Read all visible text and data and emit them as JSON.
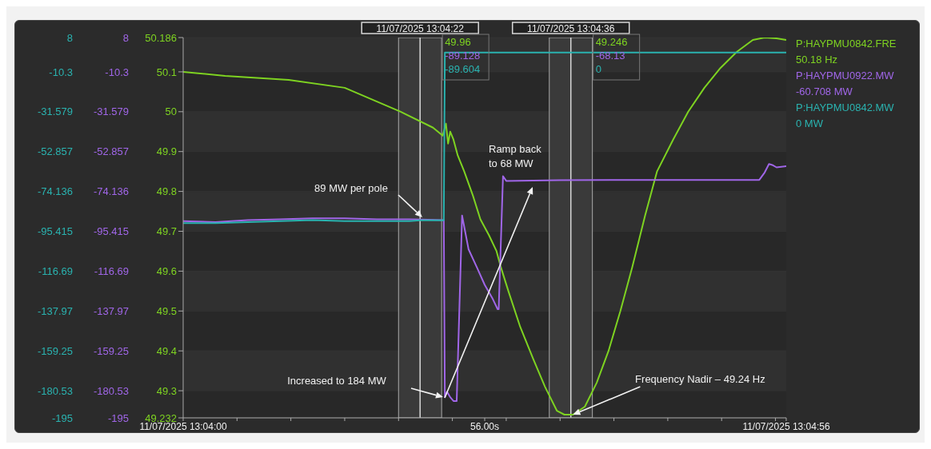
{
  "chart_data": {
    "type": "line",
    "xlim": [
      "2025-07-11T13:04:00",
      "2025-07-11T13:04:56"
    ],
    "xticks": [
      {
        "value": "2025-07-11T13:04:00",
        "label": "11/07/2025 13:04:00"
      },
      {
        "value": "2025-07-11T13:04:05",
        "label": null
      },
      {
        "value": "2025-07-11T13:04:10",
        "label": null
      },
      {
        "value": "2025-07-11T13:04:15",
        "label": null
      },
      {
        "value": "2025-07-11T13:04:20",
        "label": null
      },
      {
        "value": "2025-07-11T13:04:25",
        "label": null
      },
      {
        "value": "2025-07-11T13:04:28",
        "label": "56.00s"
      },
      {
        "value": "2025-07-11T13:04:30",
        "label": null
      },
      {
        "value": "2025-07-11T13:04:35",
        "label": null
      },
      {
        "value": "2025-07-11T13:04:40",
        "label": null
      },
      {
        "value": "2025-07-11T13:04:45",
        "label": null
      },
      {
        "value": "2025-07-11T13:04:50",
        "label": null
      },
      {
        "value": "2025-07-11T13:04:55",
        "label": null
      },
      {
        "value": "2025-07-11T13:04:56",
        "label": "11/07/2025 13:04:56"
      }
    ],
    "ylim": [
      49.232,
      50.186
    ],
    "yticks": [
      49.232,
      49.3,
      49.4,
      49.5,
      49.6,
      49.7,
      49.8,
      49.9,
      50,
      50.1,
      50.186
    ],
    "y2lim": [
      -195,
      8
    ],
    "y2ticks": [
      -195,
      -180.53,
      -159.25,
      -137.97,
      -116.69,
      -95.415,
      -74.136,
      -52.857,
      -31.579,
      -10.3,
      8
    ],
    "y3lim": [
      -195,
      8
    ],
    "y3ticks": [
      -195,
      -180.53,
      -159.25,
      -137.97,
      -116.69,
      -95.415,
      -74.136,
      -52.857,
      -31.579,
      -10.3,
      8
    ],
    "grid": "y",
    "legend": "right",
    "series": [
      {
        "name": "P:HAYPMU0842.FRE",
        "color": "#7ed321",
        "x": [
          "2025-07-11T13:04:00",
          "2025-07-11T13:04:03.9",
          "2025-07-11T13:04:09.8",
          "2025-07-11T13:04:15",
          "2025-07-11T13:04:20.2",
          "2025-07-11T13:04:23.2",
          "2025-07-11T13:04:24.1",
          "2025-07-11T13:04:24.4",
          "2025-07-11T13:04:24.6",
          "2025-07-11T13:04:24.8",
          "2025-07-11T13:04:25.1",
          "2025-07-11T13:04:25.5",
          "2025-07-11T13:04:26.1",
          "2025-07-11T13:04:26.9",
          "2025-07-11T13:04:27.6",
          "2025-07-11T13:04:28.4",
          "2025-07-11T13:04:29.1",
          "2025-07-11T13:04:29.5",
          "2025-07-11T13:04:30.2",
          "2025-07-11T13:04:31.3",
          "2025-07-11T13:04:32.5",
          "2025-07-11T13:04:33.6",
          "2025-07-11T13:04:34.7",
          "2025-07-11T13:04:35.4",
          "2025-07-11T13:04:36.2",
          "2025-07-11T13:04:37.3",
          "2025-07-11T13:04:38.4",
          "2025-07-11T13:04:39.5",
          "2025-07-11T13:04:40.6",
          "2025-07-11T13:04:41.7",
          "2025-07-11T13:04:42.9",
          "2025-07-11T13:04:44",
          "2025-07-11T13:04:45.5",
          "2025-07-11T13:04:46.9",
          "2025-07-11T13:04:48.4",
          "2025-07-11T13:04:49.9",
          "2025-07-11T13:04:51.4",
          "2025-07-11T13:04:52.9",
          "2025-07-11T13:04:54",
          "2025-07-11T13:04:55.1",
          "2025-07-11T13:04:56"
        ],
        "values": [
          50.1,
          50.09,
          50.08,
          50.06,
          50,
          49.96,
          49.94,
          49.97,
          49.92,
          49.95,
          49.93,
          49.89,
          49.85,
          49.79,
          49.73,
          49.69,
          49.65,
          49.61,
          49.55,
          49.46,
          49.38,
          49.31,
          49.25,
          49.24,
          49.24,
          49.26,
          49.32,
          49.4,
          49.5,
          49.61,
          49.74,
          49.85,
          49.93,
          50,
          50.06,
          50.11,
          50.15,
          50.18,
          50.186,
          50.184,
          50.18
        ]
      },
      {
        "name": "P:HAYPMU0922.MW",
        "color": "#a066e8",
        "axis": "y2",
        "x": [
          "2025-07-11T13:04:00",
          "2025-07-11T13:04:03",
          "2025-07-11T13:04:06",
          "2025-07-11T13:04:09",
          "2025-07-11T13:04:12",
          "2025-07-11T13:04:15",
          "2025-07-11T13:04:18",
          "2025-07-11T13:04:21",
          "2025-07-11T13:04:22",
          "2025-07-11T13:04:24.2",
          "2025-07-11T13:04:24.3",
          "2025-07-11T13:04:24.5",
          "2025-07-11T13:04:24.8",
          "2025-07-11T13:04:25.1",
          "2025-07-11T13:04:25.4",
          "2025-07-11T13:04:25.9",
          "2025-07-11T13:04:26.5",
          "2025-07-11T13:04:27.3",
          "2025-07-11T13:04:28",
          "2025-07-11T13:04:28.7",
          "2025-07-11T13:04:29.2",
          "2025-07-11T13:04:29.3",
          "2025-07-11T13:04:29.7",
          "2025-07-11T13:04:30",
          "2025-07-11T13:04:35",
          "2025-07-11T13:04:40",
          "2025-07-11T13:04:45",
          "2025-07-11T13:04:50",
          "2025-07-11T13:04:53.5",
          "2025-07-11T13:04:54",
          "2025-07-11T13:04:54.4",
          "2025-07-11T13:04:54.7",
          "2025-07-11T13:04:55.1",
          "2025-07-11T13:04:56"
        ],
        "values": [
          -90,
          -90.5,
          -89.5,
          -89,
          -88.5,
          -88.5,
          -89,
          -89,
          -89.1,
          -89.5,
          -184,
          -181,
          -184,
          -186,
          -186,
          -87,
          -105,
          -115,
          -124,
          -131,
          -137,
          -137,
          -66,
          -68.5,
          -68.1,
          -68,
          -68,
          -68,
          -68,
          -64,
          -59.5,
          -60,
          -61.3,
          -60.7
        ]
      },
      {
        "name": "P:HAYPMU0842.MW",
        "color": "#2ab3b0",
        "axis": "y3",
        "x": [
          "2025-07-11T13:04:00",
          "2025-07-11T13:04:03",
          "2025-07-11T13:04:06",
          "2025-07-11T13:04:09",
          "2025-07-11T13:04:12",
          "2025-07-11T13:04:15",
          "2025-07-11T13:04:18",
          "2025-07-11T13:04:21",
          "2025-07-11T13:04:22",
          "2025-07-11T13:04:24.2",
          "2025-07-11T13:04:24.3",
          "2025-07-11T13:04:56"
        ],
        "values": [
          -91,
          -91,
          -90.5,
          -90,
          -89.5,
          -90,
          -90,
          -90,
          -89.6,
          -89.6,
          0,
          0
        ]
      }
    ],
    "bands": [
      {
        "axis": "x",
        "from": "2025-07-11T13:04:20",
        "to": "2025-07-11T13:04:24",
        "color": "#3a3a3a"
      },
      {
        "axis": "x",
        "from": "2025-07-11T13:04:34",
        "to": "2025-07-11T13:04:38",
        "color": "#3a3a3a"
      }
    ],
    "ref_lines": [
      {
        "axis": "x",
        "value": "2025-07-11T13:04:22",
        "label": "11/07/2025 13:04:22",
        "color": "#d8d8d8"
      },
      {
        "axis": "x",
        "value": "2025-07-11T13:04:36",
        "label": "11/07/2025 13:04:36",
        "color": "#d8d8d8"
      }
    ],
    "annotations": [
      "50.18 Hz",
      "-60.708 MW",
      "0 MW",
      "49.96",
      "-89.128",
      "-89.604",
      "49.246",
      "-68.13",
      "0",
      "89 MW per pole",
      "Increased to 184 MW",
      "Ramp back to 68 MW",
      {
        "text": "Frequency Nadir – 49.24 Hz",
        "x": "2025-07-11T13:04:36.2",
        "y": 49.24
      }
    ]
  }
}
